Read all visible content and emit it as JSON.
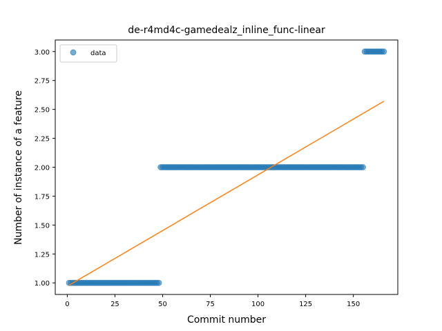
{
  "chart_data": {
    "type": "scatter",
    "title": "de-r4md4c-gamedealz_inline_func-linear",
    "xlabel": "Commit number",
    "ylabel": "Number of instance of a feature",
    "xlim": [
      -6.3,
      173.3
    ],
    "ylim": [
      0.9,
      3.1
    ],
    "xticks": [
      0,
      25,
      50,
      75,
      100,
      125,
      150
    ],
    "yticks": [
      "1.00",
      "1.25",
      "1.50",
      "1.75",
      "2.00",
      "2.25",
      "2.50",
      "2.75",
      "3.00"
    ],
    "grid": false,
    "legend_position": "upper-left",
    "series": [
      {
        "name": "data",
        "kind": "scatter",
        "color": "#1f77b4",
        "segments": [
          {
            "x_start": 1,
            "x_end": 48,
            "y": 1
          },
          {
            "x_start": 49,
            "x_end": 155,
            "y": 2
          },
          {
            "x_start": 156,
            "x_end": 166,
            "y": 3
          }
        ]
      },
      {
        "kind": "line",
        "color": "#ff7f0e",
        "x": [
          1,
          166
        ],
        "y": [
          0.98,
          2.57
        ]
      }
    ]
  }
}
